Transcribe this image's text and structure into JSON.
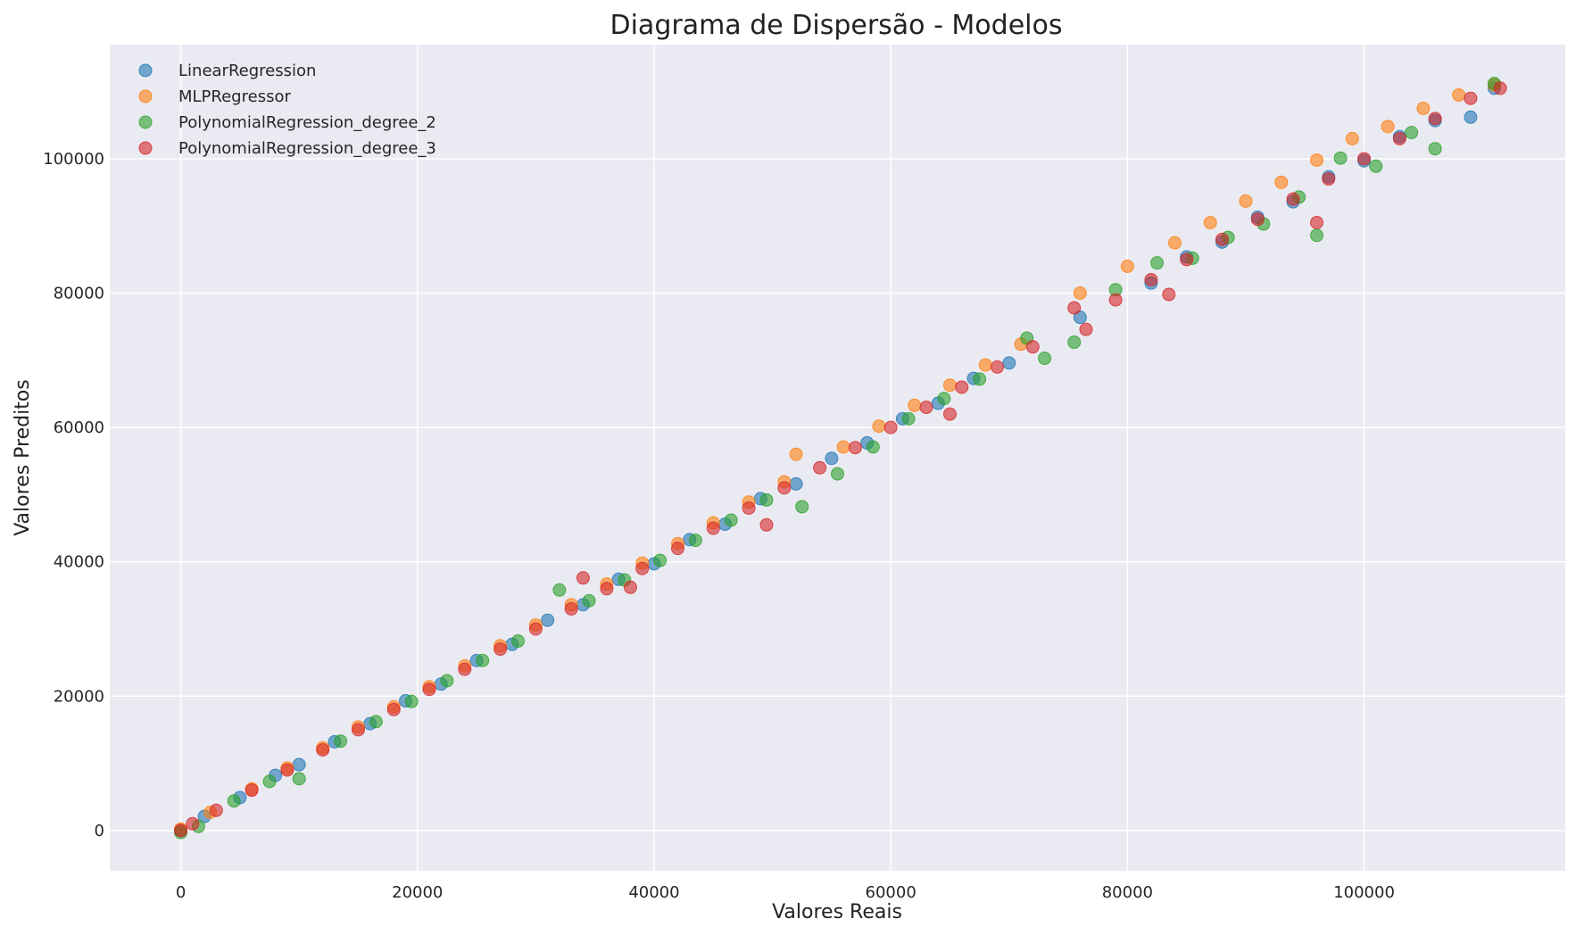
{
  "chart_data": {
    "type": "scatter",
    "title": "Diagrama de Dispersão - Modelos",
    "xlabel": "Valores Reais",
    "ylabel": "Valores Preditos",
    "xlim": [
      -6000,
      117000
    ],
    "ylim": [
      -6000,
      117000
    ],
    "xticks": [
      0,
      20000,
      40000,
      60000,
      80000,
      100000
    ],
    "yticks": [
      0,
      20000,
      40000,
      60000,
      80000,
      100000
    ],
    "grid": true,
    "legend_position": "top-left",
    "background_color": "#eaeaf2",
    "point_alpha": 0.6,
    "series": [
      {
        "name": "LinearRegression",
        "color": "#1f77b4",
        "points": [
          [
            0,
            0
          ],
          [
            2000,
            2100
          ],
          [
            5000,
            4900
          ],
          [
            8000,
            8200
          ],
          [
            10000,
            9800
          ],
          [
            13000,
            13200
          ],
          [
            16000,
            15900
          ],
          [
            19000,
            19300
          ],
          [
            22000,
            21800
          ],
          [
            25000,
            25300
          ],
          [
            28000,
            27700
          ],
          [
            31000,
            31300
          ],
          [
            34000,
            33600
          ],
          [
            37000,
            37400
          ],
          [
            40000,
            39700
          ],
          [
            43000,
            43300
          ],
          [
            46000,
            45600
          ],
          [
            49000,
            49400
          ],
          [
            52000,
            51600
          ],
          [
            55000,
            55400
          ],
          [
            58000,
            57700
          ],
          [
            61000,
            61300
          ],
          [
            64000,
            63600
          ],
          [
            67000,
            67300
          ],
          [
            70000,
            69600
          ],
          [
            76000,
            76400
          ],
          [
            82000,
            81500
          ],
          [
            85000,
            85400
          ],
          [
            88000,
            87600
          ],
          [
            91000,
            91300
          ],
          [
            94000,
            93600
          ],
          [
            97000,
            97300
          ],
          [
            100000,
            99700
          ],
          [
            103000,
            103300
          ],
          [
            106000,
            105700
          ],
          [
            109000,
            106200
          ],
          [
            111000,
            110500
          ]
        ]
      },
      {
        "name": "MLPRegressor",
        "color": "#ff7f0e",
        "points": [
          [
            0,
            200
          ],
          [
            2500,
            2700
          ],
          [
            6000,
            6200
          ],
          [
            9000,
            9300
          ],
          [
            12000,
            12300
          ],
          [
            15000,
            15400
          ],
          [
            18000,
            18400
          ],
          [
            21000,
            21400
          ],
          [
            24000,
            24500
          ],
          [
            27000,
            27500
          ],
          [
            30000,
            30600
          ],
          [
            33000,
            33600
          ],
          [
            36000,
            36700
          ],
          [
            39000,
            39800
          ],
          [
            42000,
            42700
          ],
          [
            45000,
            45800
          ],
          [
            48000,
            48900
          ],
          [
            51000,
            51900
          ],
          [
            52000,
            56000
          ],
          [
            56000,
            57100
          ],
          [
            59000,
            60200
          ],
          [
            62000,
            63300
          ],
          [
            65000,
            66300
          ],
          [
            68000,
            69300
          ],
          [
            71000,
            72400
          ],
          [
            76000,
            80000
          ],
          [
            80000,
            84000
          ],
          [
            84000,
            87500
          ],
          [
            87000,
            90500
          ],
          [
            90000,
            93700
          ],
          [
            93000,
            96500
          ],
          [
            96000,
            99800
          ],
          [
            99000,
            103000
          ],
          [
            102000,
            104800
          ],
          [
            105000,
            107500
          ],
          [
            108000,
            109500
          ],
          [
            111000,
            111000
          ]
        ]
      },
      {
        "name": "PolynomialRegression_degree_2",
        "color": "#2ca02c",
        "points": [
          [
            0,
            -300
          ],
          [
            1500,
            600
          ],
          [
            4500,
            4400
          ],
          [
            7500,
            7300
          ],
          [
            10000,
            7700
          ],
          [
            13500,
            13300
          ],
          [
            16500,
            16200
          ],
          [
            19500,
            19200
          ],
          [
            22500,
            22300
          ],
          [
            25500,
            25300
          ],
          [
            28500,
            28200
          ],
          [
            32000,
            35800
          ],
          [
            34500,
            34200
          ],
          [
            37500,
            37300
          ],
          [
            40500,
            40200
          ],
          [
            43500,
            43200
          ],
          [
            46500,
            46200
          ],
          [
            49500,
            49200
          ],
          [
            52500,
            48200
          ],
          [
            55500,
            53100
          ],
          [
            58500,
            57100
          ],
          [
            61500,
            61300
          ],
          [
            64500,
            64300
          ],
          [
            67500,
            67200
          ],
          [
            71500,
            73300
          ],
          [
            73000,
            70300
          ],
          [
            75500,
            72700
          ],
          [
            79000,
            80500
          ],
          [
            82500,
            84500
          ],
          [
            85500,
            85200
          ],
          [
            88500,
            88300
          ],
          [
            91500,
            90300
          ],
          [
            94500,
            94300
          ],
          [
            96000,
            88600
          ],
          [
            98000,
            100100
          ],
          [
            101000,
            98900
          ],
          [
            104000,
            103900
          ],
          [
            106000,
            101500
          ],
          [
            111000,
            111200
          ]
        ]
      },
      {
        "name": "PolynomialRegression_degree_3",
        "color": "#d62728",
        "points": [
          [
            0,
            0
          ],
          [
            1000,
            1000
          ],
          [
            3000,
            3000
          ],
          [
            6000,
            6000
          ],
          [
            9000,
            9000
          ],
          [
            12000,
            12000
          ],
          [
            15000,
            15000
          ],
          [
            18000,
            18000
          ],
          [
            21000,
            21000
          ],
          [
            24000,
            24000
          ],
          [
            27000,
            27000
          ],
          [
            30000,
            30000
          ],
          [
            33000,
            33000
          ],
          [
            34000,
            37600
          ],
          [
            36000,
            36000
          ],
          [
            38000,
            36200
          ],
          [
            39000,
            39000
          ],
          [
            42000,
            42000
          ],
          [
            45000,
            45000
          ],
          [
            48000,
            48000
          ],
          [
            49500,
            45500
          ],
          [
            51000,
            51000
          ],
          [
            54000,
            54000
          ],
          [
            57000,
            57000
          ],
          [
            60000,
            60000
          ],
          [
            63000,
            63000
          ],
          [
            65000,
            62000
          ],
          [
            66000,
            66000
          ],
          [
            69000,
            69000
          ],
          [
            72000,
            72000
          ],
          [
            75500,
            77800
          ],
          [
            76500,
            74600
          ],
          [
            79000,
            79000
          ],
          [
            82000,
            82000
          ],
          [
            83500,
            79800
          ],
          [
            85000,
            85000
          ],
          [
            88000,
            88000
          ],
          [
            91000,
            91000
          ],
          [
            94000,
            94000
          ],
          [
            96000,
            90500
          ],
          [
            97000,
            97000
          ],
          [
            100000,
            100000
          ],
          [
            103000,
            103000
          ],
          [
            106000,
            106000
          ],
          [
            109000,
            109000
          ],
          [
            111500,
            110500
          ]
        ]
      }
    ]
  }
}
